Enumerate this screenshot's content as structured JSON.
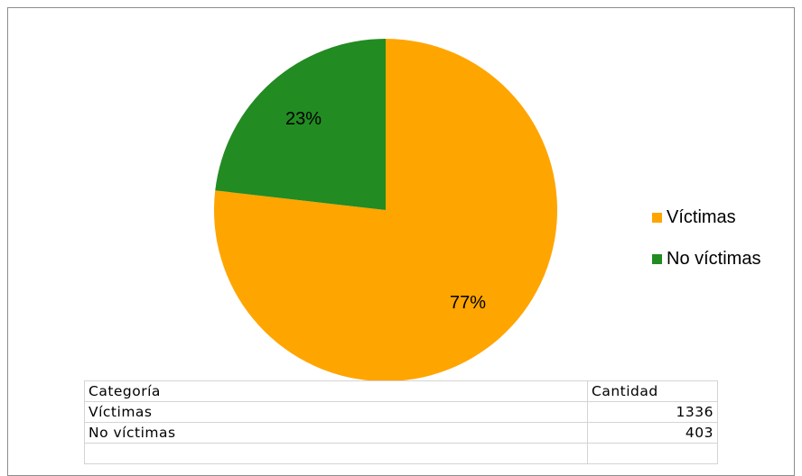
{
  "chart_data": {
    "type": "pie",
    "categories": [
      "Víctimas",
      "No víctimas"
    ],
    "values": [
      1336,
      403
    ],
    "percent_labels": [
      "77%",
      "23%"
    ],
    "colors": [
      "#FFA500",
      "#228B22"
    ],
    "legend_position": "right",
    "legend": [
      "Víctimas",
      "No víctimas"
    ]
  },
  "table": {
    "headers": [
      "Categoría",
      "Cantidad"
    ],
    "rows": [
      [
        "Víctimas",
        "1336"
      ],
      [
        "No víctimas",
        "403"
      ],
      [
        "",
        ""
      ]
    ]
  }
}
